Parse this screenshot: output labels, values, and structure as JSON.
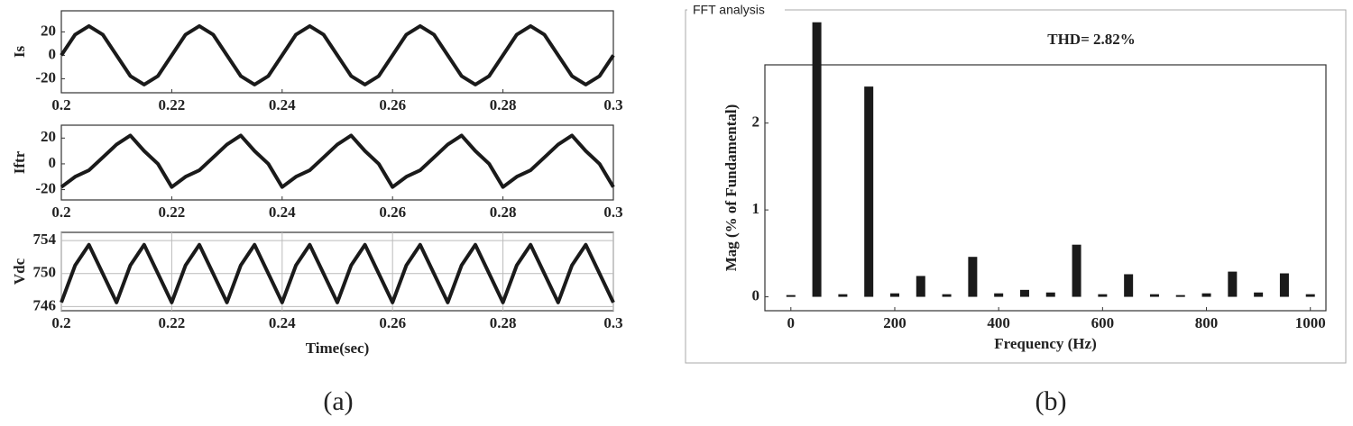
{
  "figure": {
    "panel_a_label": "(a)",
    "panel_b_label": "(b)"
  },
  "chart_data": [
    {
      "type": "line",
      "ylabel": "Is",
      "color": "#1a1a1a",
      "x": [
        0.2,
        0.2025,
        0.205,
        0.2075,
        0.21,
        0.2125,
        0.215,
        0.2175,
        0.22,
        0.2225,
        0.225,
        0.2275,
        0.23,
        0.2325,
        0.235,
        0.2375,
        0.24,
        0.2425,
        0.245,
        0.2475,
        0.25,
        0.2525,
        0.255,
        0.2575,
        0.26,
        0.2625,
        0.265,
        0.2675,
        0.27,
        0.2725,
        0.275,
        0.2775,
        0.28,
        0.2825,
        0.285,
        0.2875,
        0.29,
        0.2925,
        0.295,
        0.2975,
        0.3
      ],
      "values": [
        0,
        17.7,
        25,
        17.7,
        0,
        -17.7,
        -25,
        -17.7,
        0,
        17.7,
        25,
        17.7,
        0,
        -17.7,
        -25,
        -17.7,
        0,
        17.7,
        25,
        17.7,
        0,
        -17.7,
        -25,
        -17.7,
        0,
        17.7,
        25,
        17.7,
        0,
        -17.7,
        -25,
        -17.7,
        0,
        17.7,
        25,
        17.7,
        0,
        -17.7,
        -25,
        -17.7,
        0
      ],
      "xlim": [
        0.2,
        0.3
      ],
      "xticks": [
        0.2,
        0.22,
        0.24,
        0.26,
        0.28,
        0.3
      ],
      "ylim": [
        -32,
        38
      ],
      "yticks": [
        -20,
        0,
        20
      ],
      "grid": false
    },
    {
      "type": "line",
      "ylabel": "Iftr",
      "color": "#1a1a1a",
      "x": [
        0.2,
        0.2025,
        0.205,
        0.2075,
        0.21,
        0.2125,
        0.215,
        0.2175,
        0.22,
        0.2225,
        0.225,
        0.2275,
        0.23,
        0.2325,
        0.235,
        0.2375,
        0.24,
        0.2425,
        0.245,
        0.2475,
        0.25,
        0.2525,
        0.255,
        0.2575,
        0.26,
        0.2625,
        0.265,
        0.2675,
        0.27,
        0.2725,
        0.275,
        0.2775,
        0.28,
        0.2825,
        0.285,
        0.2875,
        0.29,
        0.2925,
        0.295,
        0.2975,
        0.3
      ],
      "values": [
        -18,
        -10,
        -5,
        5,
        15,
        22,
        10,
        0,
        -18,
        -10,
        -5,
        5,
        15,
        22,
        10,
        0,
        -18,
        -10,
        -5,
        5,
        15,
        22,
        10,
        0,
        -18,
        -10,
        -5,
        5,
        15,
        22,
        10,
        0,
        -18,
        -10,
        -5,
        5,
        15,
        22,
        10,
        0,
        -18
      ],
      "xlim": [
        0.2,
        0.3
      ],
      "xticks": [
        0.2,
        0.22,
        0.24,
        0.26,
        0.28,
        0.3
      ],
      "ylim": [
        -28,
        30
      ],
      "yticks": [
        -20,
        0,
        20
      ],
      "grid": false
    },
    {
      "type": "line",
      "ylabel": "Vdc",
      "xlabel": "Time(sec)",
      "color": "#1a1a1a",
      "x": [
        0.2,
        0.2025,
        0.205,
        0.2075,
        0.21,
        0.2125,
        0.215,
        0.2175,
        0.22,
        0.2225,
        0.225,
        0.2275,
        0.23,
        0.2325,
        0.235,
        0.2375,
        0.24,
        0.2425,
        0.245,
        0.2475,
        0.25,
        0.2525,
        0.255,
        0.2575,
        0.26,
        0.2625,
        0.265,
        0.2675,
        0.27,
        0.2725,
        0.275,
        0.2775,
        0.28,
        0.2825,
        0.285,
        0.2875,
        0.29,
        0.2925,
        0.295,
        0.2975,
        0.3
      ],
      "values": [
        746.5,
        751,
        753.5,
        750,
        746.5,
        751,
        753.5,
        750,
        746.5,
        751,
        753.5,
        750,
        746.5,
        751,
        753.5,
        750,
        746.5,
        751,
        753.5,
        750,
        746.5,
        751,
        753.5,
        750,
        746.5,
        751,
        753.5,
        750,
        746.5,
        751,
        753.5,
        750,
        746.5,
        751,
        753.5,
        750,
        746.5,
        751,
        753.5,
        750,
        746.5
      ],
      "xlim": [
        0.2,
        0.3
      ],
      "xticks": [
        0.2,
        0.22,
        0.24,
        0.26,
        0.28,
        0.3
      ],
      "ylim": [
        745.5,
        755
      ],
      "yticks": [
        746,
        750,
        754
      ],
      "grid": true
    },
    {
      "type": "bar",
      "window_title": "FFT analysis",
      "annotation": "THD= 2.82%",
      "xlabel": "Frequency (Hz)",
      "ylabel": "Mag (% of Fundamental)",
      "color": "#1a1a1a",
      "x": [
        0,
        50,
        100,
        150,
        200,
        250,
        300,
        350,
        400,
        450,
        500,
        550,
        600,
        650,
        700,
        750,
        800,
        850,
        900,
        950,
        1000
      ],
      "values": [
        0.02,
        3.16,
        0.03,
        2.42,
        0.04,
        0.24,
        0.03,
        0.46,
        0.04,
        0.08,
        0.05,
        0.6,
        0.03,
        0.26,
        0.03,
        0.02,
        0.04,
        0.29,
        0.05,
        0.27,
        0.03
      ],
      "xlim": [
        -50,
        1030
      ],
      "xticks": [
        0,
        200,
        400,
        600,
        800,
        1000
      ],
      "ylim": [
        -0.16,
        2.67
      ],
      "yticks": [
        0,
        1,
        2
      ],
      "grid": false
    }
  ]
}
